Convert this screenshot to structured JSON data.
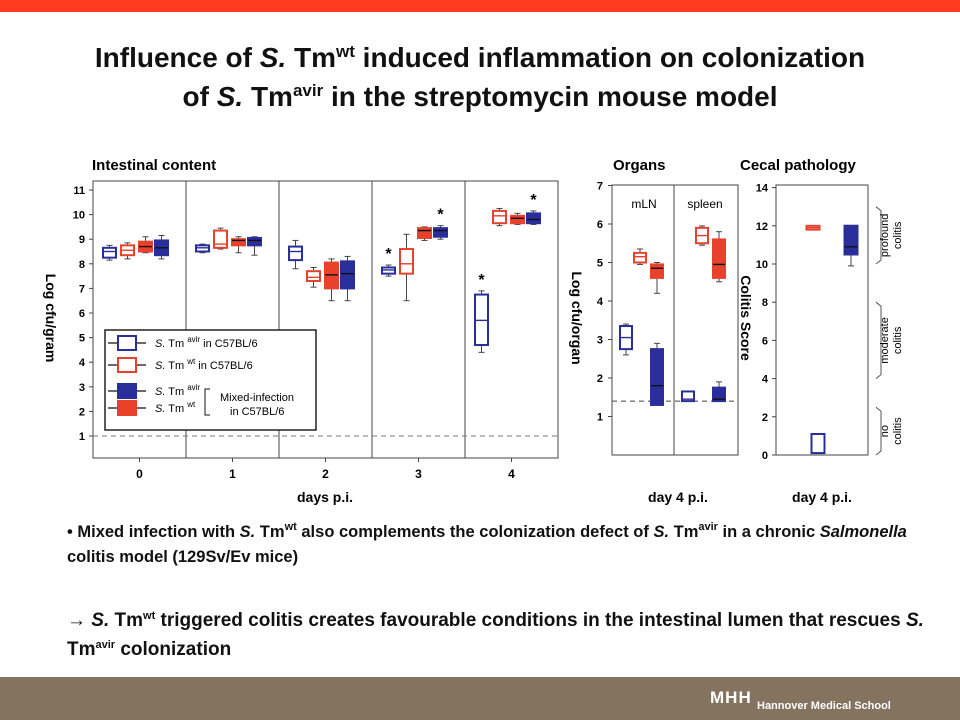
{
  "header": {
    "title_line1": {
      "a": "Influence of ",
      "b": "S.",
      "c": " Tm",
      "sup": "wt",
      "d": " induced inflammation on colonization"
    },
    "title_line2": {
      "a": "of ",
      "b": "S.",
      "c": " Tm",
      "sup": "avir",
      "d": " in the streptomycin mouse model"
    }
  },
  "colors": {
    "top_bar": "#ff3b1f",
    "bottom_bar": "#84735f",
    "avir": "#2a2e9a",
    "wt": "#e8412c"
  },
  "chart_data": [
    {
      "type": "box",
      "title": "Intestinal content",
      "xlabel": "days p.i.",
      "ylabel": "Log cfu/gram",
      "ylim": [
        0,
        11
      ],
      "yticks": [
        "1",
        "2",
        "3",
        "4",
        "5",
        "6",
        "7",
        "8",
        "9",
        "10",
        "11"
      ],
      "categories": [
        "0",
        "1",
        "2",
        "3",
        "4"
      ],
      "detection_limit": 1,
      "legend": {
        "items": [
          {
            "s": "S.",
            "tm": " Tm ",
            "sup": "avir",
            "suffix": " in C57BL/6"
          },
          {
            "s": "S.",
            "tm": " Tm ",
            "sup": "wt",
            "suffix": " in C57BL/6"
          },
          {
            "s": "S.",
            "tm": " Tm ",
            "sup": "avir"
          },
          {
            "s": "S.",
            "tm": " Tm ",
            "sup": "wt"
          }
        ],
        "mixed_label_1": "Mixed-infection",
        "mixed_label_2": "in C57BL/6"
      },
      "series": [
        {
          "name": "S. Tm avir in C57BL/6",
          "style": "open-avir",
          "boxes": [
            {
              "x": "0",
              "min": 8.15,
              "q1": 8.25,
              "median": 8.5,
              "q3": 8.65,
              "max": 8.75
            },
            {
              "x": "1",
              "min": 8.45,
              "q1": 8.5,
              "median": 8.65,
              "q3": 8.75,
              "max": 8.8
            },
            {
              "x": "2",
              "min": 7.8,
              "q1": 8.15,
              "median": 8.5,
              "q3": 8.7,
              "max": 8.95
            },
            {
              "x": "3",
              "min": 7.5,
              "q1": 7.6,
              "median": 7.75,
              "q3": 7.85,
              "max": 7.95
            },
            {
              "x": "4",
              "min": 4.4,
              "q1": 4.7,
              "median": 5.7,
              "q3": 6.75,
              "max": 6.9
            }
          ]
        },
        {
          "name": "S. Tm wt in C57BL/6",
          "style": "open-wt",
          "boxes": [
            {
              "x": "0",
              "min": 8.2,
              "q1": 8.35,
              "median": 8.55,
              "q3": 8.75,
              "max": 8.85
            },
            {
              "x": "1",
              "min": 8.6,
              "q1": 8.65,
              "median": 8.8,
              "q3": 9.35,
              "max": 9.45
            },
            {
              "x": "2",
              "min": 7.05,
              "q1": 7.3,
              "median": 7.45,
              "q3": 7.7,
              "max": 7.85
            },
            {
              "x": "3",
              "min": 6.5,
              "q1": 7.6,
              "median": 8.0,
              "q3": 8.6,
              "max": 9.2
            },
            {
              "x": "4",
              "min": 9.55,
              "q1": 9.65,
              "median": 9.95,
              "q3": 10.15,
              "max": 10.25
            }
          ]
        },
        {
          "name": "S. Tm wt mixed-infection",
          "style": "filled-wt",
          "boxes": [
            {
              "x": "0",
              "min": 8.45,
              "q1": 8.5,
              "median": 8.7,
              "q3": 8.9,
              "max": 9.1
            },
            {
              "x": "1",
              "min": 8.45,
              "q1": 8.75,
              "median": 8.95,
              "q3": 9.0,
              "max": 9.1
            },
            {
              "x": "2",
              "min": 6.5,
              "q1": 7.0,
              "median": 7.55,
              "q3": 8.05,
              "max": 8.2
            },
            {
              "x": "3",
              "min": 8.95,
              "q1": 9.05,
              "median": 9.35,
              "q3": 9.45,
              "max": 9.5
            },
            {
              "x": "4",
              "min": 9.6,
              "q1": 9.65,
              "median": 9.85,
              "q3": 9.95,
              "max": 10.05
            }
          ]
        },
        {
          "name": "S. Tm avir mixed-infection",
          "style": "filled-avir",
          "boxes": [
            {
              "x": "0",
              "min": 8.2,
              "q1": 8.35,
              "median": 8.65,
              "q3": 8.95,
              "max": 9.15
            },
            {
              "x": "1",
              "min": 8.35,
              "q1": 8.75,
              "median": 8.95,
              "q3": 9.05,
              "max": 9.1
            },
            {
              "x": "2",
              "min": 6.5,
              "q1": 7.0,
              "median": 7.6,
              "q3": 8.1,
              "max": 8.3
            },
            {
              "x": "3",
              "min": 9.0,
              "q1": 9.1,
              "median": 9.35,
              "q3": 9.45,
              "max": 9.55
            },
            {
              "x": "4",
              "min": 9.6,
              "q1": 9.65,
              "median": 9.8,
              "q3": 10.05,
              "max": 10.15
            }
          ]
        }
      ],
      "significance": [
        {
          "x": "3",
          "series": "S. Tm avir in C57BL/6",
          "label": "*"
        },
        {
          "x": "3",
          "series": "S. Tm avir mixed-infection",
          "label": "*"
        },
        {
          "x": "4",
          "series": "S. Tm avir in C57BL/6",
          "label": "*"
        },
        {
          "x": "4",
          "series": "S. Tm avir mixed-infection",
          "label": "*"
        }
      ]
    },
    {
      "type": "box",
      "title": "Organs",
      "xlabel": "day 4 p.i.",
      "ylabel": "Log cfu/organ",
      "ylim": [
        0,
        7
      ],
      "yticks": [
        "1",
        "2",
        "3",
        "4",
        "5",
        "6",
        "7"
      ],
      "panels": [
        "mLN",
        "spleen"
      ],
      "detection_limit": 1.4,
      "series": [
        {
          "name": "S. Tm avir in C57BL/6",
          "style": "open-avir",
          "boxes": [
            {
              "x": "mLN",
              "min": 2.6,
              "q1": 2.75,
              "median": 3.05,
              "q3": 3.35,
              "max": 3.4
            },
            {
              "x": "spleen",
              "min": 1.4,
              "q1": 1.4,
              "median": 1.45,
              "q3": 1.65,
              "max": 1.65
            }
          ]
        },
        {
          "name": "S. Tm wt in C57BL/6",
          "style": "open-wt",
          "boxes": [
            {
              "x": "mLN",
              "min": 4.95,
              "q1": 5.0,
              "median": 5.15,
              "q3": 5.25,
              "max": 5.35
            },
            {
              "x": "spleen",
              "min": 5.45,
              "q1": 5.5,
              "median": 5.7,
              "q3": 5.9,
              "max": 5.95
            }
          ]
        },
        {
          "name": "S. Tm wt mixed-infection",
          "style": "filled-wt",
          "boxes": [
            {
              "x": "mLN",
              "min": 4.2,
              "q1": 4.6,
              "median": 4.85,
              "q3": 4.95,
              "max": 5.0
            },
            {
              "x": "spleen",
              "min": 4.5,
              "q1": 4.6,
              "median": 4.95,
              "q3": 5.6,
              "max": 5.8
            }
          ]
        },
        {
          "name": "S. Tm avir mixed-infection",
          "style": "filled-avir",
          "boxes": [
            {
              "x": "mLN",
              "min": 1.3,
              "q1": 1.3,
              "median": 1.8,
              "q3": 2.75,
              "max": 2.9
            },
            {
              "x": "spleen",
              "min": 1.4,
              "q1": 1.4,
              "median": 1.45,
              "q3": 1.75,
              "max": 1.9
            }
          ]
        }
      ]
    },
    {
      "type": "box",
      "title": "Cecal pathology",
      "xlabel": "day 4 p.i.",
      "ylabel": "Colitis Score",
      "ylim": [
        0,
        14
      ],
      "yticks": [
        "0",
        "2",
        "4",
        "6",
        "8",
        "10",
        "12",
        "14"
      ],
      "categories": [
        "day 4 p.i."
      ],
      "brackets": [
        {
          "from": 10,
          "to": 13,
          "line1": "profound",
          "line2": "colitis"
        },
        {
          "from": 4,
          "to": 8,
          "line1": "moderate",
          "line2": "colitis"
        },
        {
          "from": 0,
          "to": 2.5,
          "line1": "no",
          "line2": "colitis"
        }
      ],
      "series": [
        {
          "name": "S. Tm avir in C57BL/6",
          "style": "open-avir",
          "boxes": [
            {
              "x": "day 4 p.i.",
              "min": 0.1,
              "q1": 0.1,
              "median": 0.1,
              "q3": 1.1,
              "max": 1.1
            }
          ]
        },
        {
          "name": "S. Tm wt in C57BL/6",
          "style": "open-wt",
          "boxes": [
            {
              "x": "day 4 p.i.",
              "min": 11.8,
              "q1": 11.8,
              "median": 11.9,
              "q3": 12.0,
              "max": 12.0
            }
          ]
        },
        {
          "name": "S. Tm wt mixed-infection",
          "style": "filled-wt",
          "boxes": [
            {
              "x": "day 4 p.i.",
              "min": 10.5,
              "q1": 10.5,
              "median": 10.8,
              "q3": 12.0,
              "max": 12.0
            }
          ]
        },
        {
          "name": "S. Tm avir mixed-infection",
          "style": "filled-avir",
          "boxes": [
            {
              "x": "day 4 p.i.",
              "min": 9.9,
              "q1": 10.5,
              "median": 10.9,
              "q3": 12.0,
              "max": 12.0
            }
          ]
        }
      ]
    }
  ],
  "bullet": {
    "p1": "• Mixed infection with ",
    "s1": "S.",
    "t1": " Tm",
    "sup1": "wt",
    "p2": " also complements the colonization defect of ",
    "s2": "S.",
    "t2": " Tm",
    "sup2": "avir",
    "p3": " in a chronic ",
    "salmonella": "Salmonella",
    "p4": " colitis model (129Sv/Ev mice)"
  },
  "conclusion": {
    "arrow": "→ ",
    "s1": "S.",
    "t1": " Tm",
    "sup1": "wt",
    "p2": " triggered colitis creates favourable conditions in the intestinal lumen that rescues ",
    "s2": "S.",
    "t2": " Tm",
    "sup2": "avir",
    "p3": " colonization"
  },
  "footer": {
    "logo": "MHH",
    "school": "Hannover Medical School"
  }
}
